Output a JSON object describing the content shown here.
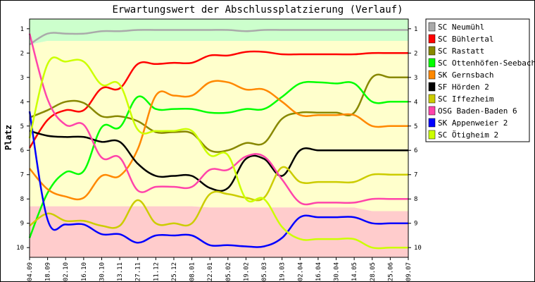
{
  "chart_data": {
    "type": "line",
    "title": "Erwartungswert der Abschlussplatzierung (Verlauf)",
    "ylabel": "Platz",
    "xlabel": "",
    "ylim": [
      1,
      10
    ],
    "y_inverted": true,
    "grid": false,
    "legend_position": "right",
    "y_ticks": [
      "1",
      "2",
      "3",
      "4",
      "5",
      "6",
      "7",
      "8",
      "9",
      "10"
    ],
    "categories": [
      "04.09",
      "18.09",
      "02.10",
      "16.10",
      "30.10",
      "13.11",
      "27.11",
      "11.12",
      "25.12",
      "08.01",
      "22.01",
      "05.02",
      "19.02",
      "05.03",
      "19.03",
      "02.04",
      "16.04",
      "30.04",
      "14.05",
      "28.05",
      "25.06",
      "09.07"
    ],
    "zones": [
      {
        "name": "top",
        "color": "#ccffcc",
        "from": 0.6,
        "to": [
          1.65,
          1.5,
          1.5,
          1.5,
          1.5,
          1.5,
          1.5,
          1.5,
          1.5,
          1.5,
          1.5,
          1.5,
          1.5,
          1.5,
          1.5,
          1.5,
          1.5,
          1.5,
          1.5,
          1.5,
          1.5,
          1.5
        ]
      },
      {
        "name": "middle",
        "color": "#ffffcc",
        "from": [
          1.65,
          1.5,
          1.5,
          1.5,
          1.5,
          1.5,
          1.5,
          1.5,
          1.5,
          1.5,
          1.5,
          1.5,
          1.5,
          1.5,
          1.5,
          1.5,
          1.5,
          1.5,
          1.5,
          1.5,
          1.5,
          1.5
        ],
        "to": [
          8.3,
          8.3,
          8.3,
          8.3,
          8.3,
          8.3,
          8.3,
          8.3,
          8.3,
          8.3,
          8.35,
          8.35,
          8.35,
          8.35,
          8.35,
          8.35,
          8.35,
          8.35,
          8.35,
          8.5,
          8.5,
          8.5
        ]
      },
      {
        "name": "bottom",
        "color": "#ffcccc",
        "from": [
          8.3,
          8.3,
          8.3,
          8.3,
          8.3,
          8.3,
          8.3,
          8.3,
          8.3,
          8.3,
          8.35,
          8.35,
          8.35,
          8.35,
          8.35,
          8.35,
          8.35,
          8.35,
          8.35,
          8.5,
          8.5,
          8.5
        ],
        "to": 10.4
      }
    ],
    "series": [
      {
        "name": "SC Neumühl",
        "color": "#aaaaaa",
        "values": [
          1.65,
          1.2,
          1.2,
          1.2,
          1.1,
          1.1,
          1.05,
          1.05,
          1.05,
          1.05,
          1.05,
          1.05,
          1.1,
          1.05,
          1.05,
          1.05,
          1.05,
          1.05,
          1.05,
          1.05,
          1.05,
          1.05
        ]
      },
      {
        "name": "SC Bühlertal",
        "color": "#ff0000",
        "values": [
          5.9,
          4.75,
          4.35,
          4.35,
          3.45,
          3.45,
          2.45,
          2.45,
          2.4,
          2.4,
          2.1,
          2.1,
          1.95,
          1.95,
          2.05,
          2.05,
          2.05,
          2.05,
          2.05,
          2.0,
          2.0,
          2.0
        ]
      },
      {
        "name": "SC Rastatt",
        "color": "#888800",
        "values": [
          4.65,
          4.35,
          4.0,
          4.05,
          4.6,
          4.6,
          4.8,
          5.25,
          5.25,
          5.3,
          6.0,
          6.0,
          5.7,
          5.7,
          4.7,
          4.45,
          4.45,
          4.45,
          4.45,
          3.0,
          3.0,
          3.0
        ]
      },
      {
        "name": "SC Ottenhöfen-Seebach",
        "color": "#00ff00",
        "values": [
          9.6,
          7.75,
          6.9,
          6.85,
          5.05,
          5.05,
          3.8,
          4.3,
          4.3,
          4.3,
          4.45,
          4.45,
          4.3,
          4.3,
          3.8,
          3.25,
          3.2,
          3.25,
          3.25,
          4.0,
          4.0,
          4.0
        ]
      },
      {
        "name": "SK Gernsbach",
        "color": "#ff8800",
        "values": [
          6.75,
          7.6,
          7.9,
          7.95,
          7.05,
          7.05,
          5.95,
          3.75,
          3.75,
          3.75,
          3.2,
          3.2,
          3.5,
          3.5,
          4.0,
          4.55,
          4.55,
          4.55,
          4.55,
          5.0,
          5.0,
          5.0
        ]
      },
      {
        "name": "SF Hörden 2",
        "color": "#000000",
        "values": [
          5.2,
          5.4,
          5.45,
          5.45,
          5.65,
          5.65,
          6.55,
          7.05,
          7.05,
          7.05,
          7.55,
          7.55,
          6.35,
          6.35,
          7.05,
          6.0,
          6.0,
          6.0,
          6.0,
          6.0,
          6.0,
          6.0
        ]
      },
      {
        "name": "SC Iffezheim",
        "color": "#cccc00",
        "values": [
          9.1,
          8.6,
          8.9,
          8.9,
          9.1,
          9.1,
          8.05,
          9.0,
          9.0,
          9.0,
          7.8,
          7.8,
          7.95,
          7.95,
          6.7,
          7.3,
          7.3,
          7.3,
          7.3,
          7.0,
          7.0,
          7.0
        ]
      },
      {
        "name": "OSG Baden-Baden 6",
        "color": "#ff44aa",
        "values": [
          1.2,
          3.9,
          4.95,
          4.95,
          6.3,
          6.3,
          7.65,
          7.5,
          7.5,
          7.5,
          6.8,
          6.8,
          6.25,
          6.25,
          7.2,
          8.15,
          8.15,
          8.15,
          8.15,
          8.0,
          8.0,
          8.0
        ]
      },
      {
        "name": "SK Appenweier 2",
        "color": "#0000ff",
        "values": [
          4.4,
          8.85,
          9.05,
          9.05,
          9.45,
          9.45,
          9.8,
          9.5,
          9.5,
          9.5,
          9.9,
          9.9,
          9.95,
          9.95,
          9.6,
          8.75,
          8.75,
          8.75,
          8.75,
          9.0,
          9.0,
          9.0
        ]
      },
      {
        "name": "SC Ötigheim 2",
        "color": "#ccff00",
        "values": [
          5.5,
          2.45,
          2.35,
          2.35,
          3.3,
          3.3,
          5.15,
          5.2,
          5.2,
          5.2,
          6.2,
          6.2,
          8.0,
          8.0,
          9.15,
          9.65,
          9.65,
          9.65,
          9.65,
          10.0,
          10.0,
          10.0
        ]
      }
    ]
  }
}
